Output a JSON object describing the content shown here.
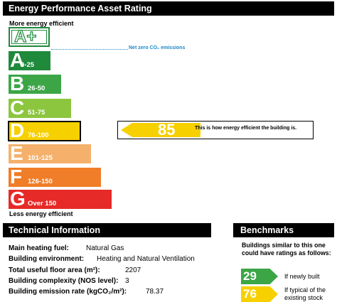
{
  "header": {
    "title": "Energy Performance Asset Rating"
  },
  "scale": {
    "more_label": "More energy efficient",
    "less_label": "Less energy efficient",
    "net_zero_label": "Net zero CO₂ emissions",
    "bands": [
      {
        "letter": "A+",
        "range": "",
        "color": "#ffffff"
      },
      {
        "letter": "A",
        "range": "0-25",
        "color": "#1f8a3c"
      },
      {
        "letter": "B",
        "range": "26-50",
        "color": "#3ca647"
      },
      {
        "letter": "C",
        "range": "51-75",
        "color": "#8cc63f"
      },
      {
        "letter": "D",
        "range": "76-100",
        "color": "#f7d000"
      },
      {
        "letter": "E",
        "range": "101-125",
        "color": "#f5b16b"
      },
      {
        "letter": "F",
        "range": "126-150",
        "color": "#f07d27"
      },
      {
        "letter": "G",
        "range": "Over 150",
        "color": "#e62a27"
      }
    ]
  },
  "rating": {
    "score": "85",
    "band": "D",
    "note": "This is how energy efficient the building is."
  },
  "technical": {
    "title": "Technical Information",
    "rows": [
      {
        "label": "Main heating fuel:",
        "value": "Natural Gas"
      },
      {
        "label": "Building environment:",
        "value": "Heating and Natural Ventilation"
      },
      {
        "label": "Total useful floor area (m²):",
        "value": "2207"
      },
      {
        "label": "Building complexity (NOS level):",
        "value": "3"
      },
      {
        "label": "Building emission rate (kgCO₂/m²):",
        "value": "78.37"
      }
    ]
  },
  "benchmarks": {
    "title": "Benchmarks",
    "intro": "Buildings similar to this one could have ratings as follows:",
    "items": [
      {
        "value": "29",
        "label": "If newly built",
        "color": "#3ca647"
      },
      {
        "value": "76",
        "label": "If typical of the existing stock",
        "color": "#f7d000"
      }
    ]
  }
}
